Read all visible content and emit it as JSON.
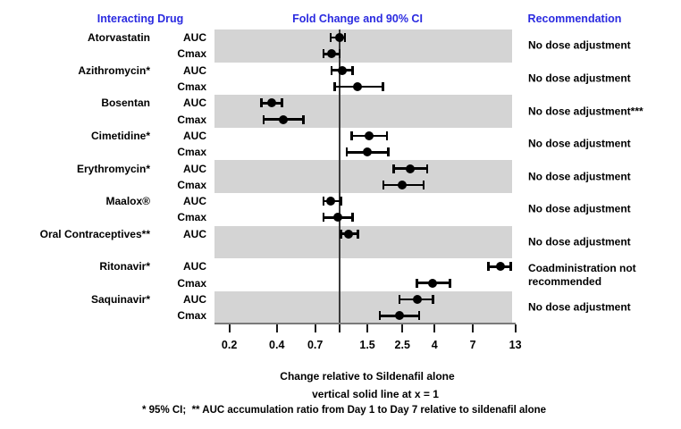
{
  "headers": {
    "interacting_drug": "Interacting Drug",
    "fold_change": "Fold Change and 90% CI",
    "recommendation": "Recommendation"
  },
  "colors": {
    "header_blue": "#2a2ae0",
    "band_gray": "#d4d4d4",
    "marker_black": "#000000",
    "reference_line": "#3a3a3a"
  },
  "chart_data": {
    "type": "forest",
    "title": "Fold Change and 90% CI",
    "xlabel_line1": "Change relative to Sildenafil alone",
    "xlabel_line2": "vertical solid line at x = 1",
    "footnote": "* 95% CI;  ** AUC accumulation ratio from Day 1 to Day 7 relative to sildenafil alone",
    "x_axis": {
      "scale": "log",
      "range": [
        0.18,
        14
      ],
      "reference_line_x": 1,
      "ticks": [
        0.2,
        0.4,
        0.7,
        1,
        1.5,
        2.5,
        4,
        7,
        13
      ],
      "tick_labels": [
        "0.2",
        "0.4",
        "0.7",
        "",
        "1.5",
        "2.5",
        "4",
        "7",
        "13"
      ]
    },
    "groups": [
      {
        "drug": "Atorvastatin",
        "shaded": true,
        "band_rows": 2,
        "recommendation": "No dose adjustment",
        "rows": [
          {
            "metric": "AUC",
            "value": 1.0,
            "lo": 0.88,
            "hi": 1.08
          },
          {
            "metric": "Cmax",
            "value": 0.89,
            "lo": 0.79,
            "hi": 1.0
          }
        ]
      },
      {
        "drug": "Azithromycin*",
        "shaded": false,
        "band_rows": 2,
        "recommendation": "No dose adjustment",
        "rows": [
          {
            "metric": "AUC",
            "value": 1.04,
            "lo": 0.89,
            "hi": 1.21
          },
          {
            "metric": "Cmax",
            "value": 1.3,
            "lo": 0.93,
            "hi": 1.88
          }
        ]
      },
      {
        "drug": "Bosentan",
        "shaded": true,
        "band_rows": 2,
        "recommendation": "No dose adjustment***",
        "rows": [
          {
            "metric": "AUC",
            "value": 0.37,
            "lo": 0.32,
            "hi": 0.43
          },
          {
            "metric": "Cmax",
            "value": 0.44,
            "lo": 0.33,
            "hi": 0.59
          }
        ]
      },
      {
        "drug": "Cimetidine*",
        "shaded": false,
        "band_rows": 2,
        "recommendation": "No dose adjustment",
        "rows": [
          {
            "metric": "AUC",
            "value": 1.53,
            "lo": 1.19,
            "hi": 2.0
          },
          {
            "metric": "Cmax",
            "value": 1.5,
            "lo": 1.11,
            "hi": 2.03
          }
        ]
      },
      {
        "drug": "Erythromycin*",
        "shaded": true,
        "band_rows": 2,
        "recommendation": "No dose adjustment",
        "rows": [
          {
            "metric": "AUC",
            "value": 2.8,
            "lo": 2.2,
            "hi": 3.6
          },
          {
            "metric": "Cmax",
            "value": 2.5,
            "lo": 1.9,
            "hi": 3.4
          }
        ]
      },
      {
        "drug": "Maalox®",
        "shaded": false,
        "band_rows": 2,
        "recommendation": "No dose adjustment",
        "rows": [
          {
            "metric": "AUC",
            "value": 0.88,
            "lo": 0.79,
            "hi": 1.02
          },
          {
            "metric": "Cmax",
            "value": 0.98,
            "lo": 0.79,
            "hi": 1.21
          }
        ]
      },
      {
        "drug": "Oral Contraceptives**",
        "shaded": true,
        "band_rows": 2,
        "recommendation": "No dose adjustment",
        "rows": [
          {
            "metric": "AUC",
            "value": 1.14,
            "lo": 1.02,
            "hi": 1.31
          }
        ]
      },
      {
        "drug": "Ritonavir*",
        "shaded": false,
        "band_rows": 2,
        "recommendation": "Coadministration not recommended",
        "rows": [
          {
            "metric": "AUC",
            "value": 10.5,
            "lo": 8.8,
            "hi": 12.2
          },
          {
            "metric": "Cmax",
            "value": 3.9,
            "lo": 3.1,
            "hi": 5.0
          }
        ]
      },
      {
        "drug": "Saquinavir*",
        "shaded": true,
        "band_rows": 2,
        "recommendation": "No dose adjustment",
        "rows": [
          {
            "metric": "AUC",
            "value": 3.1,
            "lo": 2.4,
            "hi": 3.9
          },
          {
            "metric": "Cmax",
            "value": 2.4,
            "lo": 1.8,
            "hi": 3.2
          }
        ]
      }
    ]
  }
}
